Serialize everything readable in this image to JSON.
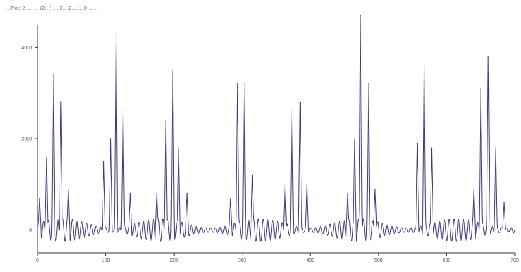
{
  "header": {
    "text": "…Plot: 2   … … (2…) … 2… 2…/… 0……"
  },
  "colors": {
    "trace": "#3a3a7c",
    "axis": "#333333",
    "background": "#ffffff"
  },
  "chart_data": {
    "type": "line",
    "title": "",
    "xlabel": "",
    "ylabel": "",
    "xlim": [
      0,
      700
    ],
    "ylim": [
      -500,
      4500
    ],
    "grid": false,
    "y_ticks": [
      0,
      2000,
      4000
    ],
    "y_tick_labels": [
      "0",
      "2000",
      "4000"
    ],
    "x_ticks": [
      0,
      100,
      200,
      300,
      400,
      500,
      600,
      700
    ],
    "x_tick_labels": [
      "0",
      "100",
      "200",
      "300",
      "400",
      "500",
      "600",
      "700"
    ],
    "beat_interval": 91,
    "series": [
      {
        "name": "",
        "baseline": 0,
        "peaks": [
          {
            "x": 3,
            "y": 700
          },
          {
            "x": 13,
            "y": 1600
          },
          {
            "x": 23,
            "y": 3400
          },
          {
            "x": 34,
            "y": 2800
          },
          {
            "x": 45,
            "y": 900
          },
          {
            "x": 97,
            "y": 1500
          },
          {
            "x": 107,
            "y": 2000
          },
          {
            "x": 115,
            "y": 4300
          },
          {
            "x": 125,
            "y": 2600
          },
          {
            "x": 136,
            "y": 800
          },
          {
            "x": 175,
            "y": 800
          },
          {
            "x": 188,
            "y": 2400
          },
          {
            "x": 198,
            "y": 3500
          },
          {
            "x": 207,
            "y": 1800
          },
          {
            "x": 219,
            "y": 800
          },
          {
            "x": 283,
            "y": 700
          },
          {
            "x": 293,
            "y": 3200
          },
          {
            "x": 303,
            "y": 3200
          },
          {
            "x": 315,
            "y": 1200
          },
          {
            "x": 363,
            "y": 1000
          },
          {
            "x": 373,
            "y": 2600
          },
          {
            "x": 385,
            "y": 2800
          },
          {
            "x": 395,
            "y": 1000
          },
          {
            "x": 455,
            "y": 800
          },
          {
            "x": 465,
            "y": 2000
          },
          {
            "x": 474,
            "y": 4700
          },
          {
            "x": 485,
            "y": 3200
          },
          {
            "x": 495,
            "y": 900
          },
          {
            "x": 557,
            "y": 1900
          },
          {
            "x": 567,
            "y": 3600
          },
          {
            "x": 578,
            "y": 1800
          },
          {
            "x": 640,
            "y": 900
          },
          {
            "x": 650,
            "y": 3100
          },
          {
            "x": 661,
            "y": 3800
          },
          {
            "x": 672,
            "y": 1800
          },
          {
            "x": 684,
            "y": 600
          }
        ],
        "small_oscillation_amplitude": 250,
        "small_oscillation_period": 7
      }
    ]
  }
}
